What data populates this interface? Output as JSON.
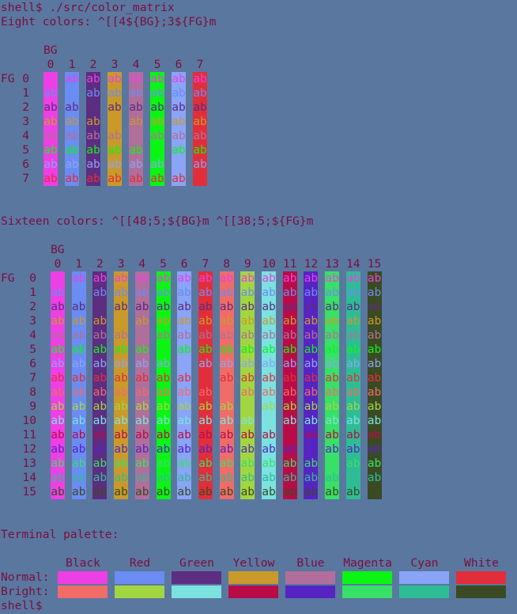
{
  "prompt": "shell$ ./src/color_matrix",
  "prompt_end": "shell$",
  "eight": {
    "title": "Eight colors: ^[[4${BG};3${FG}m",
    "bg_label": "BG",
    "fg_label": "FG",
    "indices": [
      "0",
      "1",
      "2",
      "3",
      "4",
      "5",
      "6",
      "7"
    ],
    "cell_text": "ab"
  },
  "sixteen": {
    "title": "Sixteen colors: ^[[48;5;${BG}m ^[[38;5;${FG}m",
    "bg_label": "BG",
    "fg_label": "FG",
    "indices": [
      "0",
      "1",
      "2",
      "3",
      "4",
      "5",
      "6",
      "7",
      "8",
      "9",
      "10",
      "11",
      "12",
      "13",
      "14",
      "15"
    ],
    "cell_text": "ab"
  },
  "palette": {
    "title": "Terminal palette:",
    "names": [
      "Black",
      "Red",
      "Green",
      "Yellow",
      "Blue",
      "Magenta",
      "Cyan",
      "White"
    ],
    "normal_label": "Normal:",
    "bright_label": "Bright:"
  },
  "colors": {
    "background": "#5a77a0",
    "foreground": "#7a0f3e",
    "palette16": [
      "#ee3fe5",
      "#6b8cf2",
      "#5c2d80",
      "#c99a2a",
      "#b06f9b",
      "#0bf514",
      "#8aa4f7",
      "#e22e3a",
      "#ef6c68",
      "#a2d641",
      "#7be2e0",
      "#b90c46",
      "#5724c4",
      "#37e066",
      "#2fbc95",
      "#3a4a22"
    ]
  }
}
